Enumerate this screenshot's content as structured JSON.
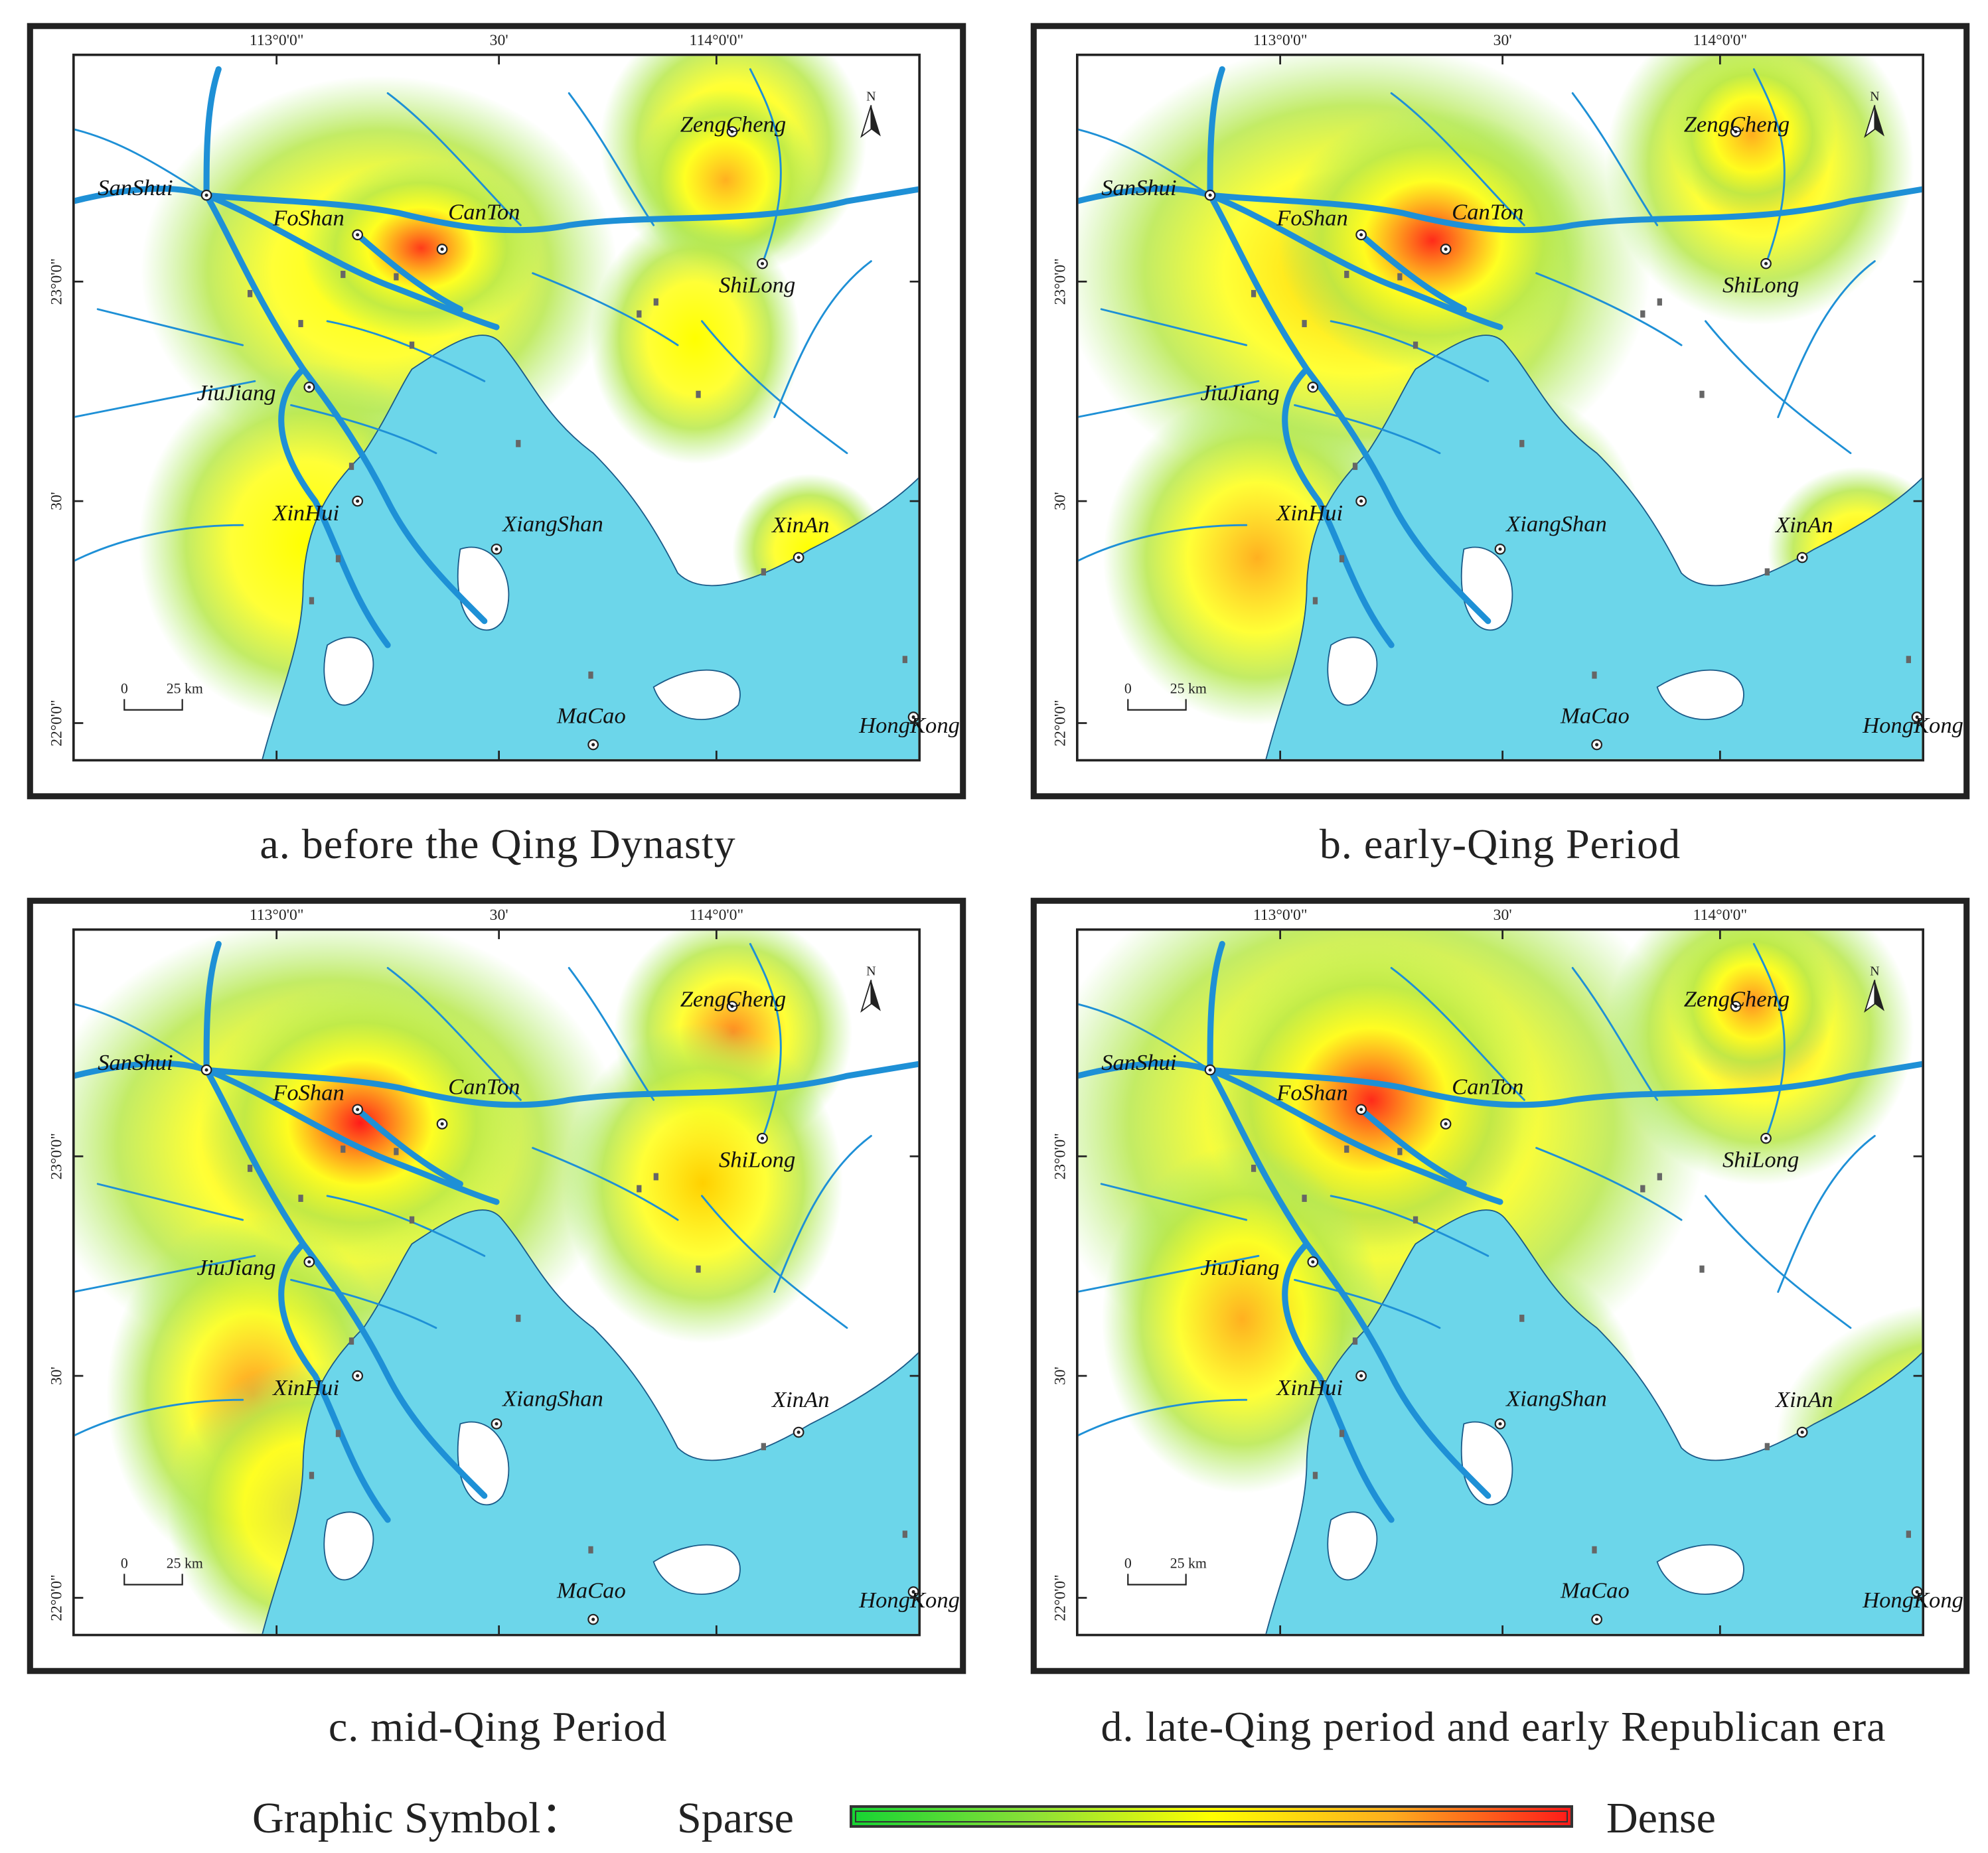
{
  "coordinates": {
    "lon_labels": [
      "113°0'0\"",
      "30'",
      "114°0'0\""
    ],
    "lat_labels": [
      "23°0'0\"",
      "30'",
      "22°0'0\""
    ]
  },
  "north_label": "N",
  "scale_bar": {
    "zero": "0",
    "dist": "25 km"
  },
  "city_labels": {
    "sanshui": "SanShui",
    "foshan": "FoShan",
    "canton": "CanTon",
    "zengcheng": "ZengCheng",
    "shilong": "ShiLong",
    "jiujiang": "JiuJiang",
    "xinhui": "XinHui",
    "xiangshan": "XiangShan",
    "xinan": "XinAn",
    "macao": "MaCao",
    "hongkong": "HongKong"
  },
  "panels": [
    {
      "id": "a",
      "caption": "a. before the Qing Dynasty"
    },
    {
      "id": "b",
      "caption": "b. early-Qing Period"
    },
    {
      "id": "c",
      "caption": "c. mid-Qing Period"
    },
    {
      "id": "d",
      "caption": "d. late-Qing period and early Republican era"
    }
  ],
  "legend": {
    "title": "Graphic Symbol：",
    "low": "Sparse",
    "high": "Dense",
    "colors": [
      "#16d433",
      "#8be037",
      "#ffff00",
      "#ffae1e",
      "#ff1a1a"
    ]
  },
  "colors": {
    "water": "#6cd6ea",
    "river": "#1e90d6",
    "frame": "#222222"
  }
}
